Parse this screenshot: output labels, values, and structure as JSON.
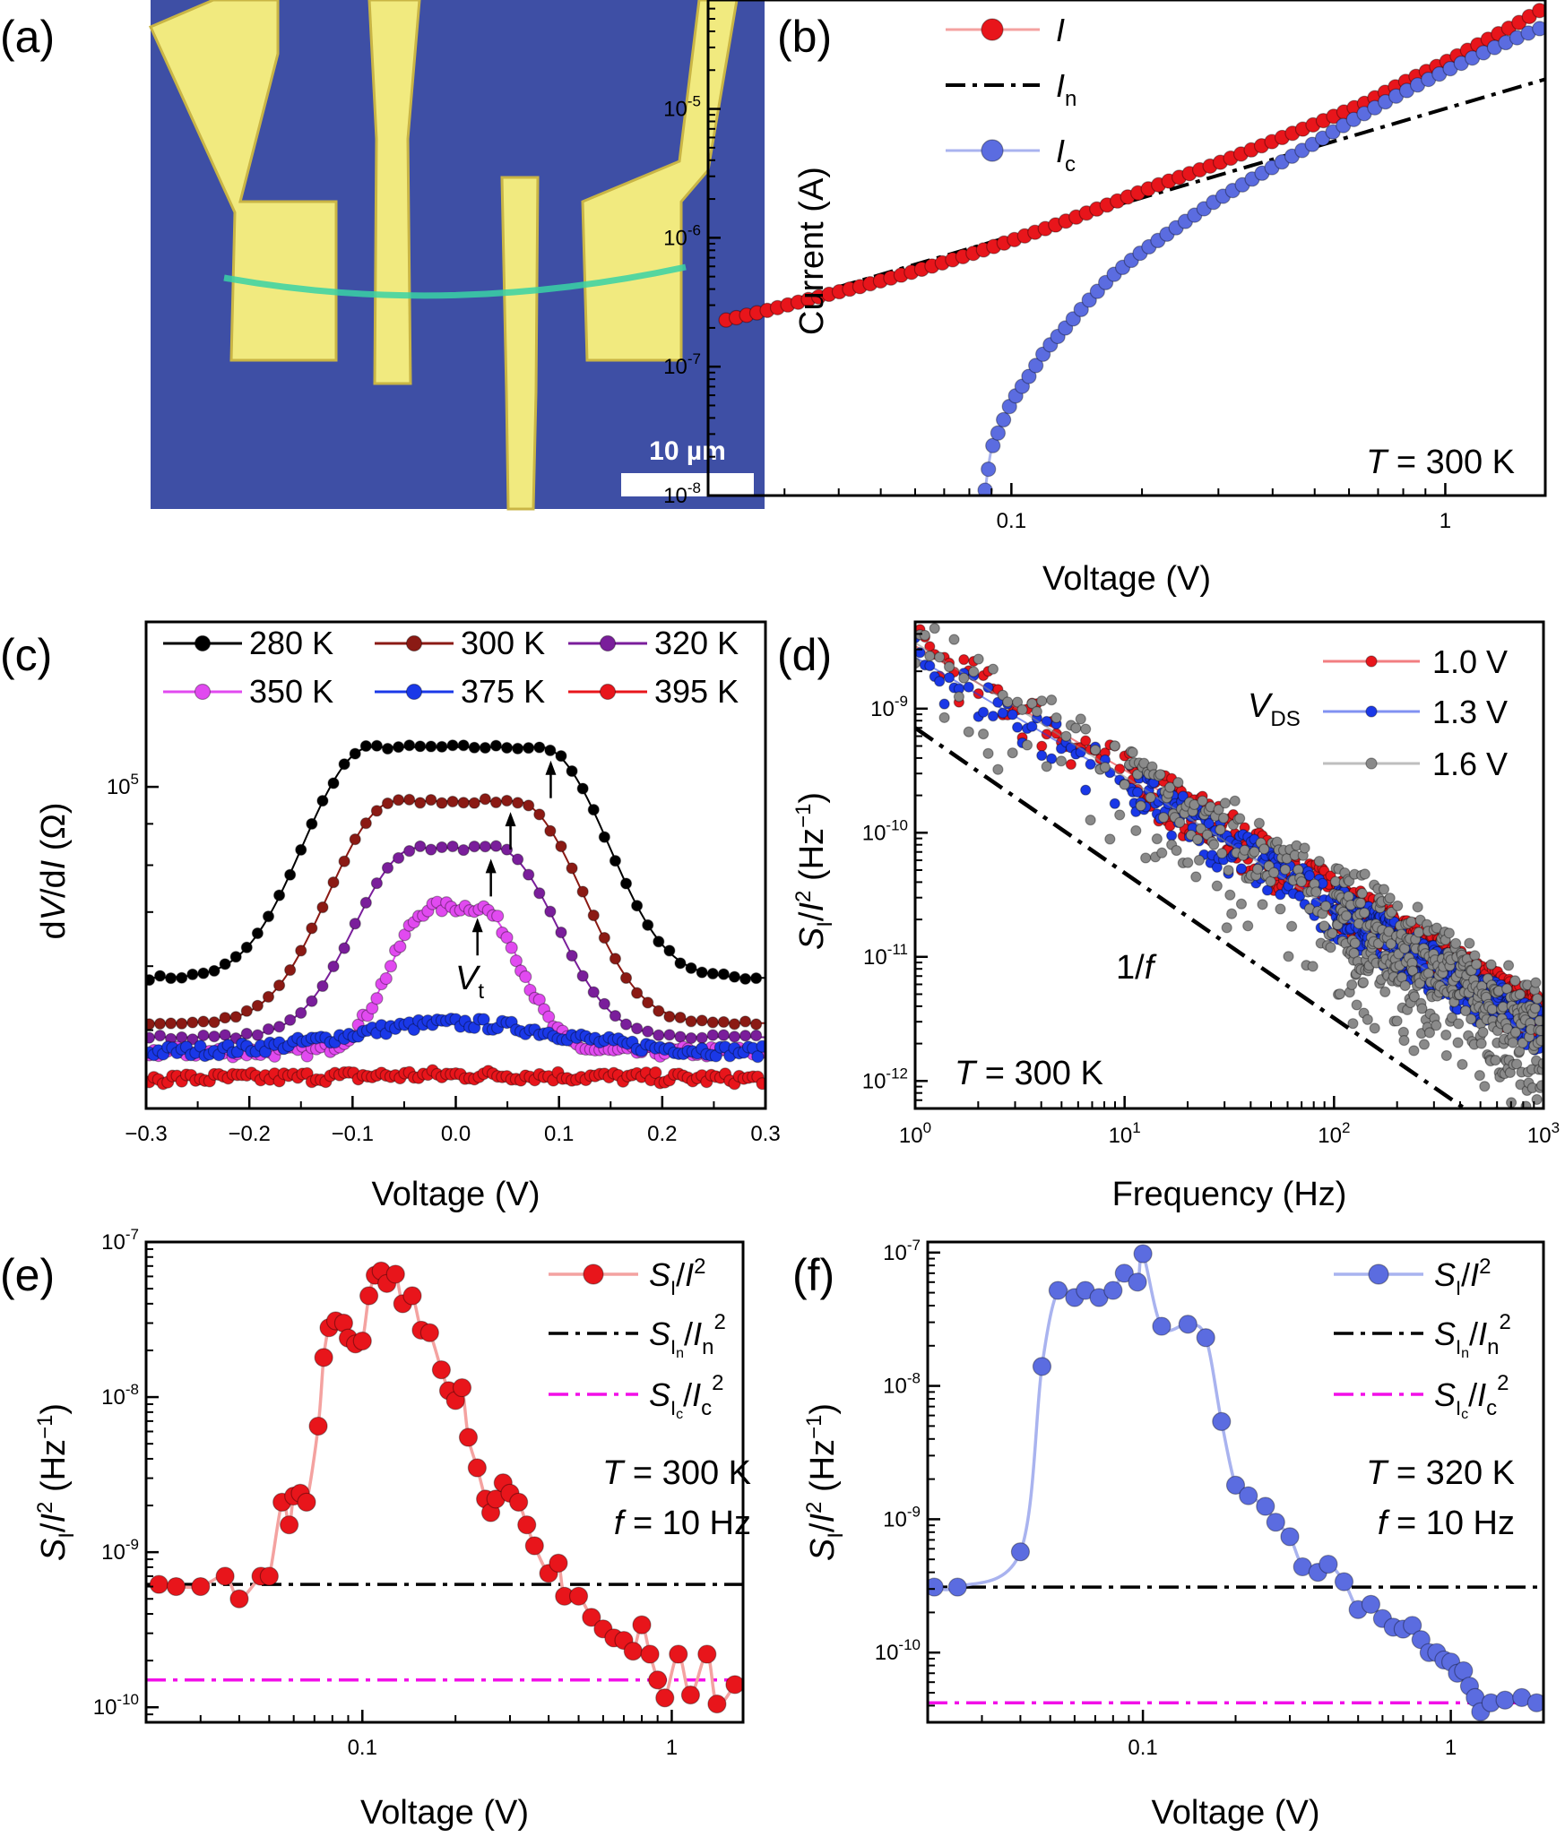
{
  "colors": {
    "red": "#e8151b",
    "red_line": "#f4a2a0",
    "blue": "#5b6ce0",
    "blue_line": "#a9b3ef",
    "black": "#000000",
    "magenta": "#f20fe8",
    "gray": "#8a8a8a",
    "dark_red": "#8b1a14",
    "purple": "#7a1e9b",
    "violet": "#e14af0",
    "blue2": "#1a38e8",
    "micro_bg": "#3e4fa5",
    "gold": "#f1ea7f"
  },
  "chart_data": [
    {
      "panel": "(a)",
      "type": "image",
      "scale_bar_label": "10 µm"
    },
    {
      "panel": "(b)",
      "type": "line",
      "xscale": "log",
      "yscale": "log",
      "xlabel": "Voltage (V)",
      "ylabel": "Current (A)",
      "xlim": [
        0.02,
        1.7
      ],
      "ylim": [
        1e-08,
        7e-05
      ],
      "xticks": [
        0.1,
        1
      ],
      "xtick_labels": [
        "0.1",
        "1"
      ],
      "yticks": [
        1e-08,
        1e-07,
        1e-06,
        1e-05
      ],
      "ytick_labels": [
        [
          "10",
          "-8"
        ],
        [
          "10",
          "-7"
        ],
        [
          "10",
          "-6"
        ],
        [
          "10",
          "-5"
        ]
      ],
      "annotation": {
        "main": "T",
        "rest": " = 300 K"
      },
      "legend_loc": "top-left",
      "series": [
        {
          "name": "I",
          "legend_main": "I",
          "legend_sub": "",
          "style": "marker-line",
          "color": "red",
          "points": [
            [
              0.022,
              2.3e-07
            ],
            [
              0.027,
              2.7e-07
            ],
            [
              0.035,
              3.4e-07
            ],
            [
              0.045,
              4.2e-07
            ],
            [
              0.06,
              5.5e-07
            ],
            [
              0.08,
              7.4e-07
            ],
            [
              0.1,
              9.5e-07
            ],
            [
              0.13,
              1.3e-06
            ],
            [
              0.17,
              1.85e-06
            ],
            [
              0.22,
              2.6e-06
            ],
            [
              0.3,
              3.8e-06
            ],
            [
              0.4,
              5.6e-06
            ],
            [
              0.5,
              7.6e-06
            ],
            [
              0.65,
              1.1e-05
            ],
            [
              0.8,
              1.6e-05
            ],
            [
              1.0,
              2.3e-05
            ],
            [
              1.2,
              3.2e-05
            ],
            [
              1.45,
              4.5e-05
            ],
            [
              1.65,
              5.8e-05
            ]
          ]
        },
        {
          "name": "In",
          "legend_main": "I",
          "legend_sub": "n",
          "style": "dashdot",
          "color": "black",
          "points": [
            [
              0.022,
              2.3e-07
            ],
            [
              1.7,
              1.7e-05
            ]
          ]
        },
        {
          "name": "Ic",
          "legend_main": "I",
          "legend_sub": "c",
          "style": "marker-line",
          "color": "blue",
          "points": [
            [
              0.087,
              1.1e-08
            ],
            [
              0.09,
              2.3e-08
            ],
            [
              0.095,
              3.6e-08
            ],
            [
              0.1,
              5.3e-08
            ],
            [
              0.11,
              8.5e-08
            ],
            [
              0.12,
              1.35e-07
            ],
            [
              0.135,
              2.1e-07
            ],
            [
              0.15,
              3.2e-07
            ],
            [
              0.17,
              5e-07
            ],
            [
              0.2,
              7.8e-07
            ],
            [
              0.24,
              1.2e-06
            ],
            [
              0.3,
              2e-06
            ],
            [
              0.38,
              3.2e-06
            ],
            [
              0.48,
              5e-06
            ],
            [
              0.6,
              7.9e-06
            ],
            [
              0.75,
              1.2e-05
            ],
            [
              0.9,
              1.65e-05
            ],
            [
              1.1,
              2.3e-05
            ],
            [
              1.3,
              3e-05
            ],
            [
              1.5,
              3.7e-05
            ],
            [
              1.65,
              4.2e-05
            ]
          ]
        }
      ]
    },
    {
      "panel": "(c)",
      "type": "line",
      "xscale": "linear",
      "yscale": "log",
      "xlabel": "Voltage (V)",
      "ylabel": "dV/dI (Ω)",
      "xlim": [
        -0.3,
        0.3
      ],
      "ylim": [
        40000,
        160000
      ],
      "xticks": [
        -0.3,
        -0.2,
        -0.1,
        0.0,
        0.1,
        0.2,
        0.3
      ],
      "xtick_labels": [
        "−0.3",
        "−0.2",
        "−0.1",
        "0.0",
        "0.1",
        "0.2",
        "0.3"
      ],
      "yticks": [
        100000
      ],
      "ytick_labels": [
        [
          "10",
          "5"
        ]
      ],
      "vt_label": {
        "main": "V",
        "sub": "t"
      },
      "legend_loc": "top",
      "legend_labels": [
        "280 K",
        "300 K",
        "320 K",
        "350 K",
        "375 K",
        "395 K"
      ],
      "series": [
        {
          "name": "280 K",
          "color": "black",
          "plateau": 112000,
          "edge": 0.082,
          "base": 58000,
          "width": 0.09,
          "arrow_v": 0.092
        },
        {
          "name": "300 K",
          "color": "dark_red",
          "plateau": 96000,
          "edge": 0.058,
          "base": 51000,
          "width": 0.09,
          "arrow_v": 0.053
        },
        {
          "name": "320 K",
          "color": "purple",
          "plateau": 84000,
          "edge": 0.038,
          "base": 49000,
          "width": 0.085,
          "arrow_v": 0.034
        },
        {
          "name": "350 K",
          "color": "violet",
          "plateau": 71000,
          "edge": 0.022,
          "base": 47000,
          "width": 0.06,
          "arrow_v": 0.021
        },
        {
          "name": "375 K",
          "color": "blue2",
          "plateau": 51000,
          "edge": 0.0,
          "base": 47000,
          "width": 0.16,
          "arrow_v": null
        },
        {
          "name": "395 K",
          "color": "red",
          "plateau": 44000,
          "edge": 0.0,
          "base": 43500,
          "width": 0.2,
          "arrow_v": null
        }
      ]
    },
    {
      "panel": "(d)",
      "type": "scatter",
      "xscale": "log",
      "yscale": "log",
      "xlabel": "Frequency (Hz)",
      "ylabel_main": "S",
      "ylabel_sub": "I",
      "ylabel_rest": "/I",
      "ylabel_unit": "(Hz",
      "xlim": [
        1,
        1000
      ],
      "ylim": [
        6e-13,
        5e-09
      ],
      "xticks": [
        1,
        10,
        100,
        1000
      ],
      "xtick_labels": [
        [
          "10",
          "0"
        ],
        [
          "10",
          "1"
        ],
        [
          "10",
          "2"
        ],
        [
          "10",
          "3"
        ]
      ],
      "yticks": [
        1e-12,
        1e-11,
        1e-10,
        1e-09
      ],
      "ytick_labels": [
        [
          "10",
          "-12"
        ],
        [
          "10",
          "-11"
        ],
        [
          "10",
          "-10"
        ],
        [
          "10",
          "-9"
        ]
      ],
      "legend_title": {
        "main": "V",
        "sub": "DS"
      },
      "fit_label": {
        "num": "1/",
        "var": "f"
      },
      "annotation": {
        "main": "T",
        "rest": " = 300 K"
      },
      "fit_line": [
        [
          1,
          7e-10
        ],
        [
          420,
          6e-13
        ]
      ],
      "series": [
        {
          "name": "1.0 V",
          "color": "red",
          "amp": 3.2e-09,
          "slope": -1.0
        },
        {
          "name": "1.3 V",
          "color": "blue2",
          "amp": 2.6e-09,
          "slope": -1.0
        },
        {
          "name": "1.6 V",
          "color": "gray",
          "amp": 3.4e-09,
          "slope": -1.08
        }
      ]
    },
    {
      "panel": "(e)",
      "type": "line",
      "xscale": "log",
      "yscale": "log",
      "xlabel": "Voltage (V)",
      "xlim": [
        0.02,
        1.7
      ],
      "ylim": [
        8e-11,
        1e-07
      ],
      "xticks": [
        0.1,
        1
      ],
      "xtick_labels": [
        "0.1",
        "1"
      ],
      "yticks": [
        1e-10,
        1e-09,
        1e-08,
        1e-07
      ],
      "ytick_labels": [
        [
          "10",
          "-10"
        ],
        [
          "10",
          "-9"
        ],
        [
          "10",
          "-8"
        ],
        [
          "10",
          "-7"
        ]
      ],
      "annotation_T": {
        "main": "T",
        "rest": " = 300 K"
      },
      "annotation_f": {
        "main": "f",
        "rest": " = 10 Hz"
      },
      "legend_labels": [
        {
          "a": "S",
          "sub": "I",
          "b": "/I"
        },
        {
          "a": "S",
          "sub": "In",
          "b": "/I",
          "sub2": "n"
        },
        {
          "a": "S",
          "sub": "Ic",
          "b": "/I",
          "sub2": "c"
        }
      ],
      "hlines": [
        {
          "value": 6.2e-10,
          "color": "black"
        },
        {
          "value": 1.5e-10,
          "color": "magenta"
        }
      ],
      "series": {
        "color": "red",
        "points": [
          [
            0.022,
            6.2e-10
          ],
          [
            0.025,
            6e-10
          ],
          [
            0.03,
            6e-10
          ],
          [
            0.036,
            7e-10
          ],
          [
            0.04,
            5e-10
          ],
          [
            0.047,
            7e-10
          ],
          [
            0.05,
            7e-10
          ],
          [
            0.055,
            2.1e-09
          ],
          [
            0.058,
            1.5e-09
          ],
          [
            0.06,
            2.3e-09
          ],
          [
            0.063,
            2.4e-09
          ],
          [
            0.066,
            2.1e-09
          ],
          [
            0.072,
            6.5e-09
          ],
          [
            0.075,
            1.8e-08
          ],
          [
            0.078,
            2.8e-08
          ],
          [
            0.082,
            3.1e-08
          ],
          [
            0.087,
            3e-08
          ],
          [
            0.09,
            2.4e-08
          ],
          [
            0.095,
            2.2e-08
          ],
          [
            0.1,
            2.3e-08
          ],
          [
            0.105,
            4.5e-08
          ],
          [
            0.11,
            6.1e-08
          ],
          [
            0.115,
            6.5e-08
          ],
          [
            0.12,
            5.4e-08
          ],
          [
            0.128,
            6.2e-08
          ],
          [
            0.135,
            4e-08
          ],
          [
            0.145,
            4.5e-08
          ],
          [
            0.155,
            2.7e-08
          ],
          [
            0.165,
            2.6e-08
          ],
          [
            0.18,
            1.5e-08
          ],
          [
            0.19,
            1.1e-08
          ],
          [
            0.2,
            9.5e-09
          ],
          [
            0.21,
            1.15e-08
          ],
          [
            0.22,
            5.5e-09
          ],
          [
            0.235,
            3.5e-09
          ],
          [
            0.25,
            2.2e-09
          ],
          [
            0.26,
            1.8e-09
          ],
          [
            0.27,
            2.2e-09
          ],
          [
            0.285,
            2.8e-09
          ],
          [
            0.3,
            2.4e-09
          ],
          [
            0.32,
            2.1e-09
          ],
          [
            0.34,
            1.5e-09
          ],
          [
            0.36,
            1.1e-09
          ],
          [
            0.4,
            7.3e-10
          ],
          [
            0.43,
            8.5e-10
          ],
          [
            0.45,
            5.2e-10
          ],
          [
            0.5,
            5.2e-10
          ],
          [
            0.55,
            3.8e-10
          ],
          [
            0.6,
            3.2e-10
          ],
          [
            0.65,
            2.8e-10
          ],
          [
            0.7,
            2.7e-10
          ],
          [
            0.75,
            2.3e-10
          ],
          [
            0.8,
            3.4e-10
          ],
          [
            0.85,
            2.2e-10
          ],
          [
            0.9,
            1.5e-10
          ],
          [
            0.95,
            1.15e-10
          ],
          [
            1.05,
            2.2e-10
          ],
          [
            1.15,
            1.2e-10
          ],
          [
            1.3,
            2.2e-10
          ],
          [
            1.4,
            1.05e-10
          ],
          [
            1.6,
            1.4e-10
          ]
        ]
      }
    },
    {
      "panel": "(f)",
      "type": "line",
      "xscale": "log",
      "yscale": "log",
      "xlabel": "Voltage (V)",
      "xlim": [
        0.02,
        2.0
      ],
      "ylim": [
        3e-11,
        1.2e-07
      ],
      "xticks": [
        0.1,
        1
      ],
      "xtick_labels": [
        "0.1",
        "1"
      ],
      "yticks": [
        1e-10,
        1e-09,
        1e-08,
        1e-07
      ],
      "ytick_labels": [
        [
          "10",
          "-10"
        ],
        [
          "10",
          "-9"
        ],
        [
          "10",
          "-8"
        ],
        [
          "10",
          "-7"
        ]
      ],
      "annotation_T": {
        "main": "T",
        "rest": " = 320 K"
      },
      "annotation_f": {
        "main": "f",
        "rest": " = 10 Hz"
      },
      "legend_labels": [
        {
          "a": "S",
          "sub": "I",
          "b": "/I"
        },
        {
          "a": "S",
          "sub": "In",
          "b": "/I",
          "sub2": "n"
        },
        {
          "a": "S",
          "sub": "Ic",
          "b": "/I",
          "sub2": "c"
        }
      ],
      "hlines": [
        {
          "value": 3.1e-10,
          "color": "black"
        },
        {
          "value": 4.2e-11,
          "color": "magenta"
        }
      ],
      "series": {
        "color": "blue",
        "points": [
          [
            0.021,
            3.1e-10
          ],
          [
            0.025,
            3.1e-10
          ],
          [
            0.04,
            5.7e-10
          ],
          [
            0.047,
            1.4e-08
          ],
          [
            0.053,
            5.2e-08
          ],
          [
            0.06,
            4.6e-08
          ],
          [
            0.065,
            5.2e-08
          ],
          [
            0.072,
            4.6e-08
          ],
          [
            0.08,
            5.2e-08
          ],
          [
            0.087,
            7e-08
          ],
          [
            0.096,
            6e-08
          ],
          [
            0.1,
            9.8e-08
          ],
          [
            0.115,
            2.8e-08
          ],
          [
            0.14,
            2.9e-08
          ],
          [
            0.16,
            2.3e-08
          ],
          [
            0.18,
            5.4e-09
          ],
          [
            0.2,
            1.8e-09
          ],
          [
            0.22,
            1.5e-09
          ],
          [
            0.25,
            1.25e-09
          ],
          [
            0.27,
            9.5e-10
          ],
          [
            0.3,
            7.4e-10
          ],
          [
            0.33,
            4.4e-10
          ],
          [
            0.37,
            4e-10
          ],
          [
            0.4,
            4.6e-10
          ],
          [
            0.45,
            3.4e-10
          ],
          [
            0.5,
            2.1e-10
          ],
          [
            0.55,
            2.3e-10
          ],
          [
            0.6,
            1.8e-10
          ],
          [
            0.65,
            1.55e-10
          ],
          [
            0.7,
            1.5e-10
          ],
          [
            0.75,
            1.6e-10
          ],
          [
            0.8,
            1.25e-10
          ],
          [
            0.85,
            1e-10
          ],
          [
            0.9,
            1e-10
          ],
          [
            0.95,
            8.8e-11
          ],
          [
            1.0,
            8.5e-11
          ],
          [
            1.05,
            7e-11
          ],
          [
            1.1,
            7.3e-11
          ],
          [
            1.15,
            5.6e-11
          ],
          [
            1.2,
            4.6e-11
          ],
          [
            1.25,
            3.6e-11
          ],
          [
            1.35,
            4.2e-11
          ],
          [
            1.5,
            4.4e-11
          ],
          [
            1.7,
            4.6e-11
          ],
          [
            1.9,
            4.2e-11
          ]
        ]
      }
    }
  ],
  "panel_labels": [
    "(a)",
    "(b)",
    "(c)",
    "(d)",
    "(e)",
    "(f)"
  ]
}
